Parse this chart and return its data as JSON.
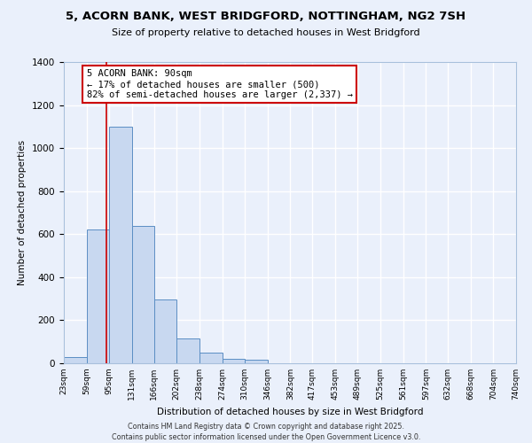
{
  "title1": "5, ACORN BANK, WEST BRIDGFORD, NOTTINGHAM, NG2 7SH",
  "title2": "Size of property relative to detached houses in West Bridgford",
  "xlabel": "Distribution of detached houses by size in West Bridgford",
  "ylabel": "Number of detached properties",
  "bin_edges": [
    23,
    59,
    95,
    131,
    166,
    202,
    238,
    274,
    310,
    346,
    382,
    417,
    453,
    489,
    525,
    561,
    597,
    632,
    668,
    704,
    740
  ],
  "bar_heights": [
    30,
    620,
    1100,
    640,
    295,
    115,
    50,
    20,
    15,
    0,
    0,
    0,
    0,
    0,
    0,
    0,
    0,
    0,
    0,
    0
  ],
  "bar_color": "#c8d8f0",
  "bar_edge_color": "#5b8ec4",
  "background_color": "#eaf0fb",
  "grid_color": "#ffffff",
  "vline_x": 90,
  "vline_color": "#cc0000",
  "annotation_title": "5 ACORN BANK: 90sqm",
  "annotation_line1": "← 17% of detached houses are smaller (500)",
  "annotation_line2": "82% of semi-detached houses are larger (2,337) →",
  "annotation_box_color": "#cc0000",
  "ylim": [
    0,
    1400
  ],
  "yticks": [
    0,
    200,
    400,
    600,
    800,
    1000,
    1200,
    1400
  ],
  "footer1": "Contains HM Land Registry data © Crown copyright and database right 2025.",
  "footer2": "Contains public sector information licensed under the Open Government Licence v3.0."
}
